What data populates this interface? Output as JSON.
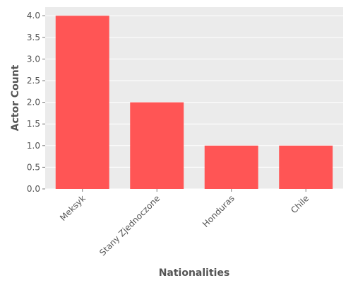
{
  "chart_data": {
    "type": "bar",
    "title": "",
    "xlabel": "Nationalities",
    "ylabel": "Actor Count",
    "categories": [
      "Meksyk",
      "Stany Zjednoczone",
      "Honduras",
      "Chile"
    ],
    "values": [
      4,
      2,
      1,
      1
    ],
    "ylim": [
      0,
      4.2
    ],
    "yticks": [
      "0.0",
      "0.5",
      "1.0",
      "1.5",
      "2.0",
      "2.5",
      "3.0",
      "3.5",
      "4.0"
    ],
    "grid": true,
    "legend": "none",
    "colors": {
      "bar": "#ff5555",
      "plot_background": "#ebebeb",
      "grid": "#ffffff",
      "text": "#555555"
    }
  }
}
